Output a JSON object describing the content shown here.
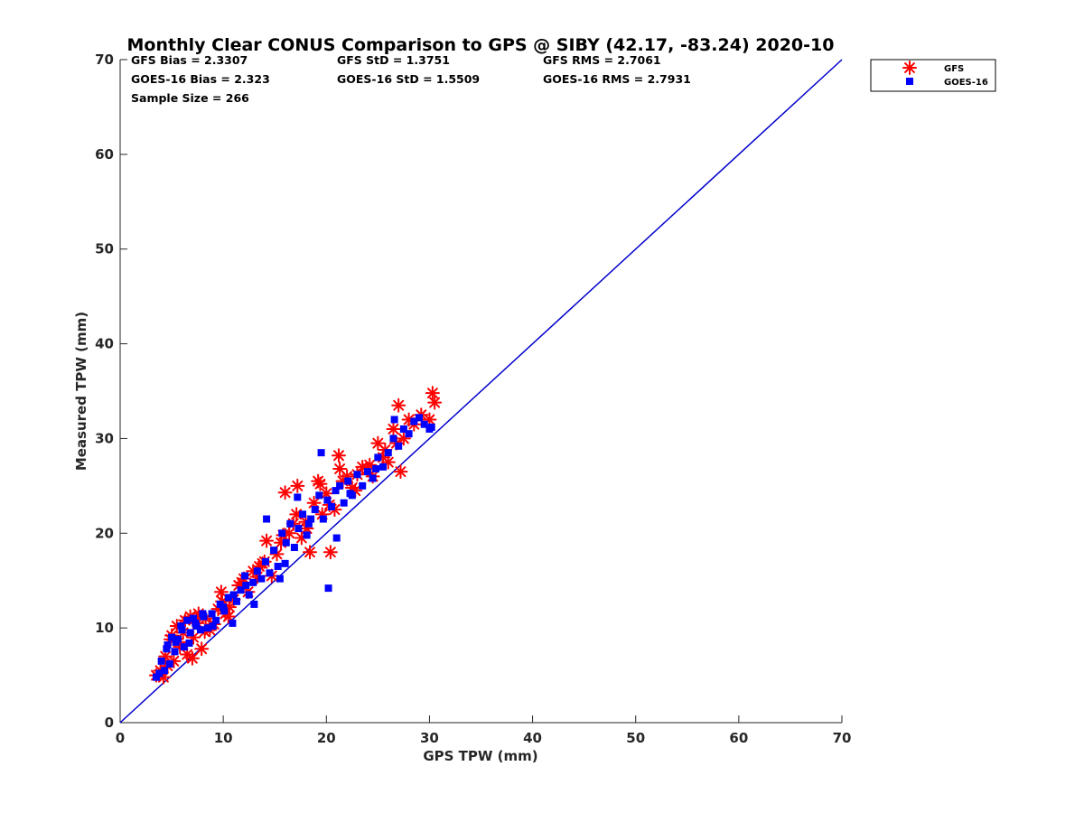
{
  "chart_data": {
    "type": "scatter",
    "title": "Monthly Clear CONUS Comparison to GPS @ SIBY (42.17, -83.24) 2020-10",
    "xlabel": "GPS TPW (mm)",
    "ylabel": "Measured TPW (mm)",
    "xlim": [
      0,
      70
    ],
    "ylim": [
      0,
      70
    ],
    "xticks": [
      "0",
      "10",
      "20",
      "30",
      "40",
      "50",
      "60",
      "70"
    ],
    "yticks": [
      "0",
      "10",
      "20",
      "30",
      "40",
      "50",
      "60",
      "70"
    ],
    "grid": false,
    "legend_position": "top-right, outside plot",
    "stats": {
      "gfs_bias": "GFS Bias = 2.3307",
      "gfs_std": "GFS StD = 1.3751",
      "gfs_rms": "GFS RMS = 2.7061",
      "goes_bias": "GOES-16 Bias = 2.323",
      "goes_std": "GOES-16 StD = 1.5509",
      "goes_rms": "GOES-16 RMS = 2.7931",
      "sample_size": "Sample Size = 266"
    },
    "reference_line": {
      "x": [
        0,
        70
      ],
      "y": [
        0,
        70
      ],
      "color": "#0000cc"
    },
    "series": [
      {
        "name": "GFS",
        "marker": "asterisk",
        "color": "#ff0000",
        "x": [
          3.5,
          3.9,
          4.2,
          4.6,
          4.9,
          5.2,
          5.5,
          5.8,
          6.1,
          6.5,
          6.8,
          7.1,
          7.5,
          7.9,
          8.3,
          8.7,
          9.1,
          9.5,
          9.8,
          10.2,
          10.6,
          11.0,
          11.5,
          12.0,
          12.4,
          12.9,
          13.3,
          13.8,
          14.2,
          14.7,
          15.2,
          15.6,
          16.0,
          16.4,
          16.8,
          17.2,
          17.6,
          18.0,
          18.4,
          18.8,
          19.2,
          19.6,
          20.0,
          20.4,
          20.8,
          21.2,
          21.6,
          22.0,
          22.5,
          23.0,
          23.5,
          24.0,
          24.5,
          25.0,
          25.5,
          26.0,
          26.5,
          27.0,
          27.5,
          28.0,
          28.5,
          29.2,
          30.0,
          30.3,
          30.5,
          4.4,
          5.0,
          5.7,
          6.3,
          7.0,
          7.6,
          8.2,
          9.9,
          10.5,
          11.8,
          13.5,
          14.0,
          15.8,
          17.1,
          18.1,
          19.4,
          20.3,
          21.3,
          22.8,
          24.2,
          25.7,
          26.8,
          27.2
        ],
        "y": [
          5.0,
          5.5,
          4.8,
          6.0,
          8.8,
          6.5,
          10.2,
          8.0,
          9.5,
          7.2,
          11.2,
          9.0,
          10.5,
          7.8,
          11.0,
          9.8,
          10.4,
          12.0,
          13.8,
          11.5,
          12.2,
          13.0,
          14.5,
          15.2,
          13.8,
          16.0,
          15.4,
          16.8,
          19.2,
          15.5,
          17.8,
          19.0,
          24.3,
          20.0,
          21.0,
          25.0,
          19.5,
          21.2,
          18.0,
          23.2,
          25.5,
          22.0,
          24.2,
          18.0,
          22.5,
          28.2,
          25.5,
          26.0,
          24.8,
          26.2,
          27.0,
          26.8,
          26.0,
          29.5,
          28.0,
          27.5,
          31.0,
          33.5,
          30.0,
          32.0,
          31.5,
          32.5,
          32.0,
          34.8,
          33.8,
          7.0,
          9.2,
          8.5,
          10.8,
          6.8,
          11.5,
          9.6,
          12.8,
          11.2,
          14.8,
          16.5,
          17.0,
          19.8,
          22.0,
          20.5,
          25.2,
          23.0,
          26.8,
          24.5,
          27.2,
          28.8,
          29.5,
          26.5
        ]
      },
      {
        "name": "GOES-16",
        "marker": "square",
        "color": "#0000ff",
        "x": [
          3.5,
          3.8,
          4.0,
          4.3,
          4.5,
          4.8,
          5.0,
          5.3,
          5.6,
          5.9,
          6.2,
          6.5,
          6.8,
          7.1,
          7.4,
          7.8,
          8.1,
          8.5,
          8.9,
          9.3,
          9.7,
          10.1,
          10.5,
          10.9,
          11.3,
          11.7,
          12.1,
          12.5,
          12.9,
          13.3,
          13.7,
          14.1,
          14.5,
          14.9,
          15.3,
          15.7,
          16.1,
          16.5,
          16.9,
          17.3,
          17.7,
          18.1,
          18.5,
          18.9,
          19.3,
          19.7,
          20.1,
          20.5,
          20.9,
          21.3,
          21.7,
          22.1,
          22.5,
          23.0,
          23.5,
          24.0,
          24.5,
          25.0,
          25.5,
          26.0,
          26.5,
          27.0,
          27.5,
          28.0,
          28.5,
          29.0,
          29.5,
          30.0,
          30.2,
          19.5,
          14.2,
          20.2,
          15.5,
          21.0,
          17.2,
          26.6,
          4.6,
          5.4,
          6.0,
          6.7,
          7.3,
          8.0,
          9.0,
          10.0,
          11.0,
          12.2,
          13.0,
          16.0,
          18.3,
          22.3,
          24.8
        ],
        "y": [
          4.8,
          5.2,
          6.5,
          5.5,
          7.8,
          6.2,
          9.0,
          7.5,
          8.8,
          10.2,
          8.0,
          10.8,
          9.5,
          11.0,
          10.2,
          9.8,
          11.2,
          10.0,
          11.5,
          10.8,
          12.5,
          11.8,
          13.2,
          10.5,
          12.8,
          14.0,
          15.5,
          13.5,
          14.8,
          16.0,
          15.2,
          17.0,
          15.8,
          18.2,
          16.5,
          20.0,
          19.0,
          21.0,
          18.5,
          20.5,
          22.0,
          19.8,
          21.5,
          22.5,
          24.0,
          21.5,
          23.5,
          22.8,
          24.5,
          25.0,
          23.2,
          25.5,
          24.0,
          26.2,
          25.0,
          26.5,
          25.8,
          28.0,
          27.0,
          28.5,
          30.0,
          29.2,
          31.0,
          30.5,
          31.8,
          32.2,
          31.5,
          31.0,
          31.2,
          28.5,
          21.5,
          14.2,
          15.2,
          19.5,
          23.8,
          32.0,
          8.2,
          8.5,
          9.8,
          8.4,
          10.5,
          11.5,
          10.2,
          12.2,
          13.5,
          14.5,
          12.5,
          16.8,
          21.0,
          24.2,
          26.8
        ]
      }
    ]
  }
}
